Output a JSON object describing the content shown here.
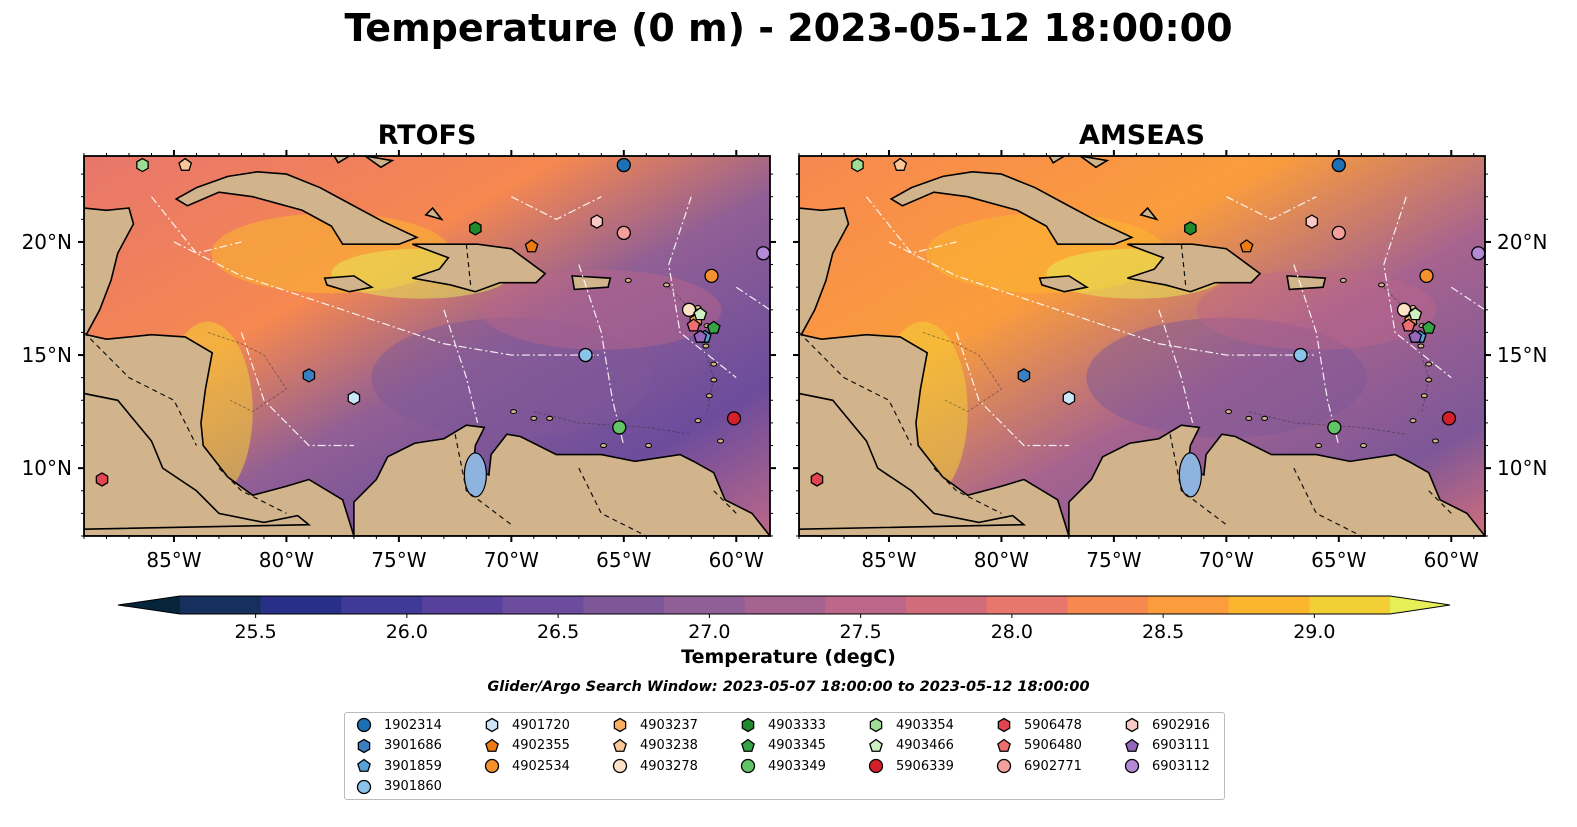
{
  "title": "Temperature (0 m) - 2023-05-12 18:00:00",
  "panels": [
    {
      "title": "RTOFS"
    },
    {
      "title": "AMSEAS"
    }
  ],
  "axes": {
    "x_ticks": [
      "85°W",
      "80°W",
      "75°W",
      "70°W",
      "65°W",
      "60°W"
    ],
    "x_tick_values": [
      -85,
      -80,
      -75,
      -70,
      -65,
      -60
    ],
    "y_ticks": [
      "20°N",
      "15°N",
      "10°N"
    ],
    "y_tick_values": [
      20,
      15,
      10
    ],
    "lon_range": [
      -89,
      -58.5
    ],
    "lat_range": [
      7,
      23.8
    ]
  },
  "colorbar": {
    "label": "Temperature (degC)",
    "ticks": [
      "25.5",
      "26.0",
      "26.5",
      "27.0",
      "27.5",
      "28.0",
      "28.5",
      "29.0"
    ],
    "tick_values": [
      25.5,
      26.0,
      26.5,
      27.0,
      27.5,
      28.0,
      28.5,
      29.0
    ],
    "range": [
      25.25,
      29.25
    ],
    "extend": "both",
    "colors": [
      "#07253a",
      "#15305d",
      "#272f86",
      "#3f3a98",
      "#58419c",
      "#6c4c9c",
      "#7d5798",
      "#905f95",
      "#a6638f",
      "#bc678a",
      "#d16d7b",
      "#e7766c",
      "#f68850",
      "#fb9d3c",
      "#fab62f",
      "#f2cf35",
      "#e6ef58"
    ]
  },
  "search_window": "Glider/Argo Search Window: 2023-05-07 18:00:00 to 2023-05-12 18:00:00",
  "legend": {
    "columns": [
      [
        {
          "id": "1902314",
          "color": "#1f6fb4",
          "marker": "circle"
        },
        {
          "id": "3901686",
          "color": "#3a7fc2",
          "marker": "hexagon"
        },
        {
          "id": "3901859",
          "color": "#57a2d8",
          "marker": "pentagon"
        },
        {
          "id": "3901860",
          "color": "#8cc3ea",
          "marker": "circle"
        }
      ],
      [
        {
          "id": "4901720",
          "color": "#cce4f7",
          "marker": "hexagon"
        },
        {
          "id": "4902355",
          "color": "#f07a12",
          "marker": "pentagon"
        },
        {
          "id": "4902534",
          "color": "#f5922f",
          "marker": "circle"
        }
      ],
      [
        {
          "id": "4903237",
          "color": "#fbad62",
          "marker": "hexagon"
        },
        {
          "id": "4903238",
          "color": "#fcc796",
          "marker": "pentagon"
        },
        {
          "id": "4903278",
          "color": "#fde2c6",
          "marker": "circle"
        }
      ],
      [
        {
          "id": "4903333",
          "color": "#1e8a2c",
          "marker": "hexagon"
        },
        {
          "id": "4903345",
          "color": "#36a444",
          "marker": "pentagon"
        },
        {
          "id": "4903349",
          "color": "#62c467",
          "marker": "circle"
        }
      ],
      [
        {
          "id": "4903354",
          "color": "#9ede94",
          "marker": "hexagon"
        },
        {
          "id": "4903466",
          "color": "#ccf0c2",
          "marker": "pentagon"
        },
        {
          "id": "5906339",
          "color": "#d3202b",
          "marker": "circle"
        }
      ],
      [
        {
          "id": "5906478",
          "color": "#e04550",
          "marker": "hexagon"
        },
        {
          "id": "5906480",
          "color": "#ee6f72",
          "marker": "pentagon"
        },
        {
          "id": "6902771",
          "color": "#f4a09c",
          "marker": "circle"
        }
      ],
      [
        {
          "id": "6902916",
          "color": "#f9c9c6",
          "marker": "hexagon"
        },
        {
          "id": "6903111",
          "color": "#9467bd",
          "marker": "pentagon"
        },
        {
          "id": "6903112",
          "color": "#b48ad6",
          "marker": "circle"
        }
      ]
    ]
  },
  "chart_data": {
    "type": "scatter",
    "title": "Temperature (0 m) - 2023-05-12 18:00:00",
    "xlabel": "",
    "ylabel": "",
    "xlim": [
      -89,
      -58.5
    ],
    "ylim": [
      7,
      23.8
    ],
    "points": [
      {
        "id": "1902314",
        "lon": -65.0,
        "lat": 23.4
      },
      {
        "id": "3901686",
        "lon": -79.0,
        "lat": 14.1
      },
      {
        "id": "3901859",
        "lon": -61.4,
        "lat": 15.8
      },
      {
        "id": "3901860",
        "lon": -66.7,
        "lat": 15.0
      },
      {
        "id": "4901720",
        "lon": -77.0,
        "lat": 13.1
      },
      {
        "id": "4902355",
        "lon": -69.1,
        "lat": 19.8
      },
      {
        "id": "4902534",
        "lon": -61.1,
        "lat": 18.5
      },
      {
        "id": "4903237",
        "lon": -61.8,
        "lat": 16.5
      },
      {
        "id": "4903238",
        "lon": -84.5,
        "lat": 23.4
      },
      {
        "id": "4903278",
        "lon": -62.1,
        "lat": 17.0
      },
      {
        "id": "4903333",
        "lon": -71.6,
        "lat": 20.6
      },
      {
        "id": "4903345",
        "lon": -61.0,
        "lat": 16.2
      },
      {
        "id": "4903349",
        "lon": -65.2,
        "lat": 11.8
      },
      {
        "id": "4903354",
        "lon": -86.4,
        "lat": 23.4
      },
      {
        "id": "4903466",
        "lon": -61.6,
        "lat": 16.8
      },
      {
        "id": "5906339",
        "lon": -60.1,
        "lat": 12.2
      },
      {
        "id": "5906478",
        "lon": -88.2,
        "lat": 9.5
      },
      {
        "id": "5906480",
        "lon": -61.9,
        "lat": 16.3
      },
      {
        "id": "6902771",
        "lon": -65.0,
        "lat": 20.4
      },
      {
        "id": "6902916",
        "lon": -66.2,
        "lat": 20.9
      },
      {
        "id": "6903111",
        "lon": -61.6,
        "lat": 15.8
      },
      {
        "id": "6903112",
        "lon": -58.8,
        "lat": 19.5
      }
    ]
  }
}
